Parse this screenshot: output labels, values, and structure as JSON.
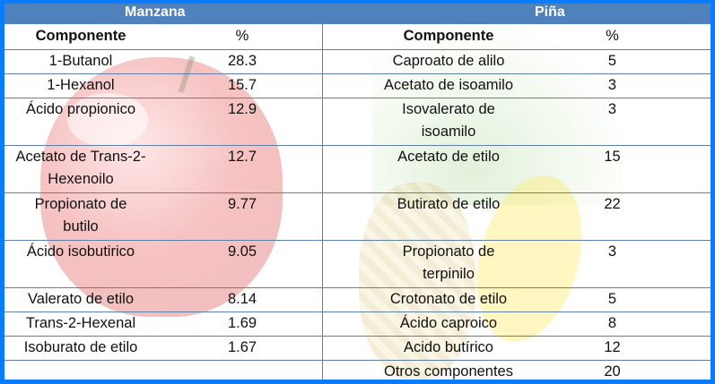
{
  "tables": {
    "manzana": {
      "title": "Manzana",
      "columns": [
        "Componente",
        "%"
      ],
      "rows": [
        {
          "componente": "1-Butanol",
          "pct": "28.3"
        },
        {
          "componente": "1-Hexanol",
          "pct": "15.7"
        },
        {
          "componente": "Ácido propionico",
          "pct": "12.9"
        },
        {
          "componente": "Acetato de Trans-2-\nHexenoilo",
          "pct": "12.7"
        },
        {
          "componente": "Propionato de\nbutilo",
          "pct": "9.77"
        },
        {
          "componente": "Ácido isobutirico",
          "pct": "9.05"
        },
        {
          "componente": "Valerato de etilo",
          "pct": "8.14"
        },
        {
          "componente": "Trans-2-Hexenal",
          "pct": "1.69"
        },
        {
          "componente": "Isoburato de etilo",
          "pct": "1.67"
        },
        {
          "componente": "",
          "pct": ""
        }
      ]
    },
    "pina": {
      "title": "Piña",
      "columns": [
        "Componente",
        "%"
      ],
      "rows": [
        {
          "componente": "Caproato de alilo",
          "pct": "5"
        },
        {
          "componente": "Acetato de isoamilo",
          "pct": "3"
        },
        {
          "componente": "Isovalerato de\nisoamilo",
          "pct": "3"
        },
        {
          "componente": "Acetato de etilo",
          "pct": "15"
        },
        {
          "componente": "Butirato de etilo",
          "pct": "22"
        },
        {
          "componente": "Propionato de\nterpinilo",
          "pct": "3"
        },
        {
          "componente": "Crotonato de etilo",
          "pct": "5"
        },
        {
          "componente": "Ácido caproico",
          "pct": "8"
        },
        {
          "componente": "Acido butírico",
          "pct": "12"
        },
        {
          "componente": "Otros componentes",
          "pct": "20"
        }
      ]
    }
  },
  "colors": {
    "frame": "#0a7cff",
    "header": "#4f81bd",
    "grid": "#5f7fa6"
  }
}
